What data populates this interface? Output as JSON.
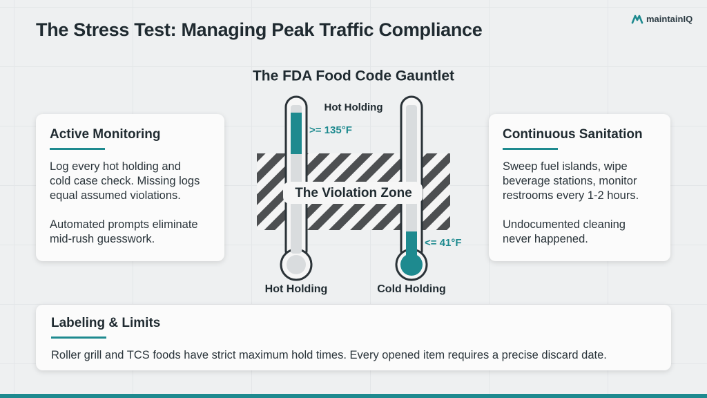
{
  "header": {
    "title": "The Stress Test: Managing Peak Traffic Compliance",
    "logo": "maintainIQ"
  },
  "gauntlet": {
    "title": "The FDA Food Code Gauntlet",
    "top_label": "Hot Holding",
    "hot_limit": ">= 135°F",
    "cold_limit": "<= 41°F",
    "zone": "The Violation Zone",
    "hot_label": "Hot Holding",
    "cold_label": "Cold Holding"
  },
  "cards": [
    {
      "heading": "Active Monitoring",
      "paragraphs": [
        [
          "Log every hot holding and",
          "cold case check. Missing logs",
          "equal assumed violations."
        ],
        [
          "Automated prompts eliminate",
          "mid-rush guesswork."
        ]
      ]
    },
    {
      "heading": "Continuous Sanitation",
      "paragraphs": [
        [
          "Sweep fuel islands, wipe",
          "beverage stations, monitor",
          "restrooms every 1-2 hours."
        ],
        [
          "Undocumented cleaning",
          "never happened."
        ]
      ]
    },
    {
      "heading": "Labeling & Limits",
      "paragraphs": [
        [
          "Roller grill and TCS foods have strict maximum hold times. Every opened item requires a precise discard date."
        ]
      ]
    }
  ]
}
